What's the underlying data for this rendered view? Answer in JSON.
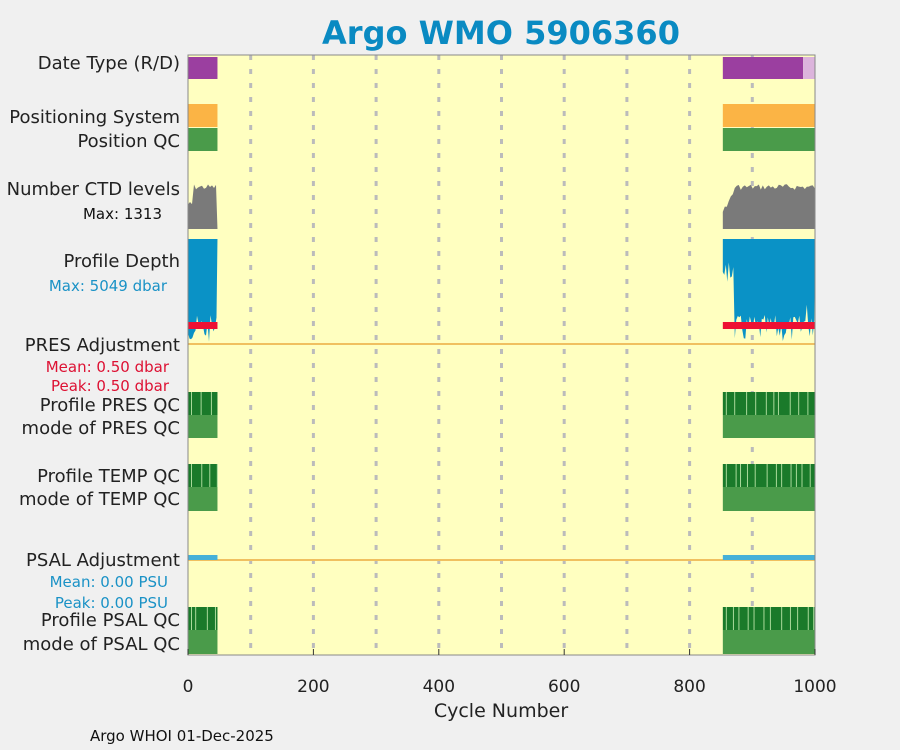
{
  "chart_data": {
    "type": "bar",
    "title": "Argo WMO 5906360",
    "xlabel": "Cycle Number",
    "xlim": [
      0,
      1000
    ],
    "xticks": [
      0,
      200,
      400,
      600,
      800,
      1000
    ],
    "grid_x": [
      100,
      200,
      300,
      400,
      500,
      600,
      700,
      800,
      900
    ],
    "cycle_segments": [
      [
        0,
        47
      ],
      [
        853,
        1000
      ]
    ],
    "rows": [
      {
        "key": "date_type",
        "label": "Date Type (R/D)"
      },
      {
        "key": "positioning_system",
        "label": "Positioning System"
      },
      {
        "key": "position_qc",
        "label": "Position QC"
      },
      {
        "key": "num_ctd_levels",
        "label": "Number CTD levels",
        "note": "Max: 1313",
        "max": 1313
      },
      {
        "key": "profile_depth",
        "label": "Profile Depth",
        "note": "Max: 5049 dbar",
        "max": 5049
      },
      {
        "key": "pres_adjustment",
        "label": "PRES Adjustment",
        "notes": [
          "Mean: 0.50 dbar",
          "Peak: 0.50 dbar"
        ],
        "mean": 0.5,
        "peak": 0.5
      },
      {
        "key": "profile_pres_qc",
        "label": "Profile PRES QC"
      },
      {
        "key": "mode_pres_qc",
        "label": "mode of PRES QC"
      },
      {
        "key": "profile_temp_qc",
        "label": "Profile TEMP QC"
      },
      {
        "key": "mode_temp_qc",
        "label": "mode of TEMP QC"
      },
      {
        "key": "psal_adjustment",
        "label": "PSAL Adjustment",
        "notes": [
          "Mean: 0.00 PSU",
          "Peak: 0.00 PSU"
        ],
        "mean": 0.0,
        "peak": 0.0
      },
      {
        "key": "profile_psal_qc",
        "label": "Profile PSAL QC"
      },
      {
        "key": "mode_psal_qc",
        "label": "mode of PSAL QC"
      }
    ],
    "date_type_segments": [
      {
        "from": 0,
        "to": 47,
        "mode": "R"
      },
      {
        "from": 853,
        "to": 981,
        "mode": "R"
      },
      {
        "from": 981,
        "to": 1000,
        "mode": "D"
      }
    ]
  },
  "footer": "Argo WHOI 01-Dec-2025",
  "colors": {
    "background": "#f0f0f0",
    "plot_bg": "#ffffc0",
    "title": "#0a8ac2",
    "date_type_R": "#9b3fa0",
    "date_type_D": "#dcb4dc",
    "positioning": "#fbb445",
    "qc_good": "#4a9b4a",
    "qc_dark": "#1a7a2a",
    "ctd_levels": "#7a7a7a",
    "profile_depth": "#0a92c6",
    "pres_red": "#ee1133",
    "adjust_line": "#f0c060",
    "psal_adjust": "#46b0d8",
    "pres_note": "#dd1133",
    "psal_note": "#1a92c6",
    "grid": "#bbbbbb"
  }
}
